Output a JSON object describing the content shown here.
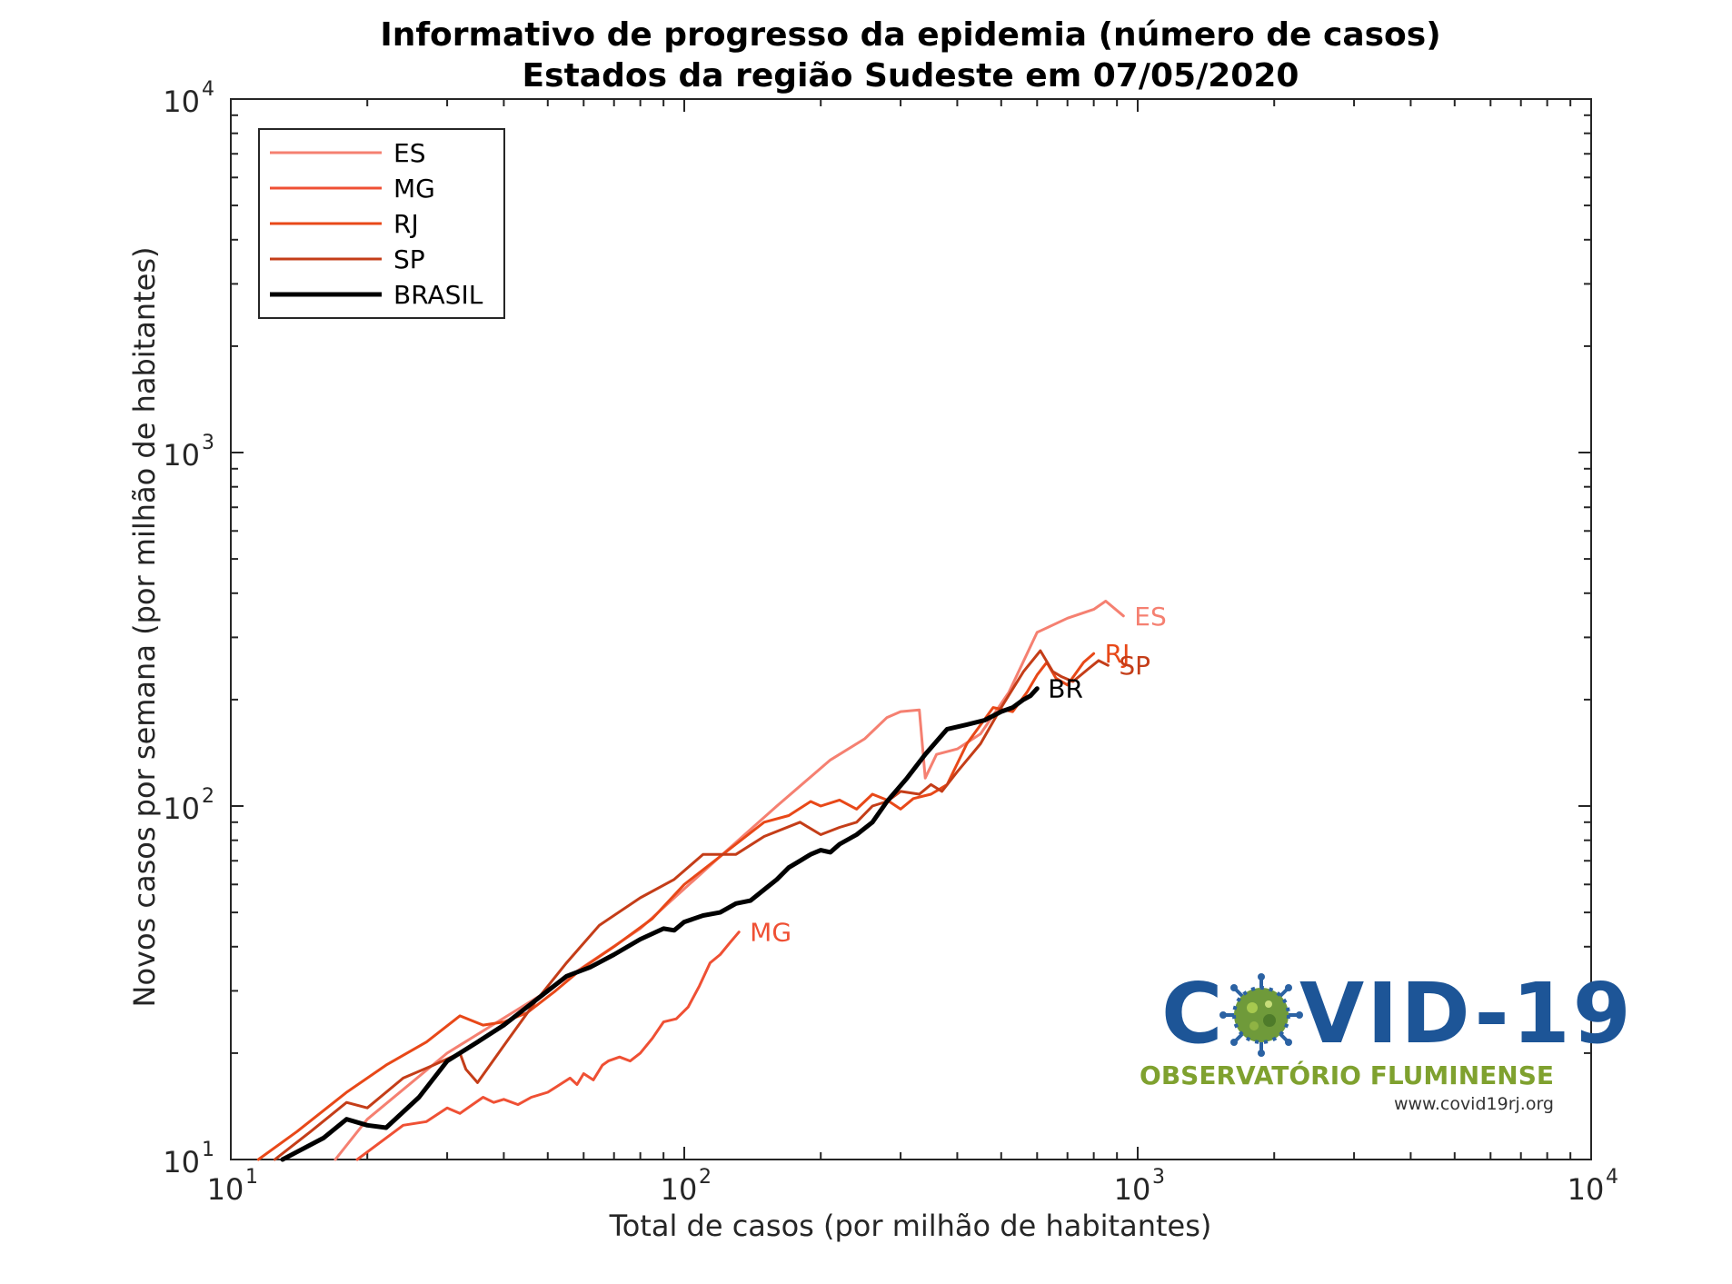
{
  "chart_data": {
    "type": "line",
    "title": "Informativo de progresso da epidemia (número de casos)",
    "subtitle": "Estados da região Sudeste  em 07/05/2020",
    "xlabel": "Total de casos (por milhão de habitantes)",
    "ylabel": "Novos casos por semana (por milhão de habitantes)",
    "x_scale": "log",
    "y_scale": "log",
    "xlim": [
      10,
      10000
    ],
    "ylim": [
      10,
      10000
    ],
    "x_ticks": [
      {
        "base": "10",
        "exp": "1"
      },
      {
        "base": "10",
        "exp": "2"
      },
      {
        "base": "10",
        "exp": "3"
      },
      {
        "base": "10",
        "exp": "4"
      }
    ],
    "y_ticks": [
      {
        "base": "10",
        "exp": "1"
      },
      {
        "base": "10",
        "exp": "2"
      },
      {
        "base": "10",
        "exp": "3"
      },
      {
        "base": "10",
        "exp": "4"
      }
    ],
    "grid": false,
    "legend_position": "top-left",
    "series": [
      {
        "name": "ES",
        "end_label": "ES",
        "color": "#f58071",
        "width": 3,
        "x": [
          17,
          20,
          30,
          50,
          80,
          120,
          160,
          210,
          250,
          280,
          300,
          330,
          340,
          360,
          400,
          450,
          520,
          600,
          700,
          800,
          850,
          930
        ],
        "y": [
          10,
          13,
          20,
          30,
          45,
          72,
          100,
          135,
          155,
          178,
          185,
          187,
          120,
          140,
          145,
          160,
          210,
          310,
          340,
          360,
          380,
          345
        ]
      },
      {
        "name": "MG",
        "end_label": "MG",
        "color": "#ef5034",
        "width": 3,
        "x": [
          19,
          24,
          27,
          30,
          32,
          36,
          38,
          40,
          43,
          46,
          50,
          52,
          56,
          58,
          60,
          63,
          66,
          68,
          72,
          76,
          80,
          85,
          90,
          96,
          102,
          108,
          114,
          120,
          126,
          132
        ],
        "y": [
          10,
          12.5,
          12.8,
          14,
          13.5,
          15,
          14.5,
          14.8,
          14.3,
          15,
          15.5,
          16,
          17,
          16.3,
          17.5,
          16.8,
          18.5,
          19,
          19.5,
          19,
          20,
          22,
          24.5,
          25,
          27,
          31,
          36,
          38,
          41,
          44
        ]
      },
      {
        "name": "RJ",
        "end_label": "RJ",
        "color": "#e84818",
        "width": 3,
        "x": [
          11.5,
          14,
          18,
          22,
          27,
          32,
          36,
          40,
          45,
          52,
          60,
          70,
          85,
          100,
          120,
          150,
          170,
          190,
          200,
          220,
          240,
          260,
          280,
          300,
          320,
          350,
          380,
          420,
          480,
          530,
          570,
          600,
          630,
          660,
          700,
          760,
          800
        ],
        "y": [
          10,
          12,
          15.5,
          18.5,
          21.5,
          25.5,
          24,
          24.5,
          26,
          30,
          35,
          40,
          48,
          60,
          72,
          90,
          94,
          103,
          100,
          104,
          98,
          108,
          104,
          98,
          105,
          108,
          115,
          150,
          190,
          185,
          210,
          235,
          255,
          230,
          220,
          255,
          270
        ]
      },
      {
        "name": "SP",
        "end_label": "SP",
        "color": "#c43d18",
        "width": 3,
        "x": [
          12.5,
          15,
          18,
          20,
          24,
          28,
          32,
          33,
          35,
          40,
          47,
          55,
          65,
          80,
          95,
          110,
          130,
          150,
          180,
          200,
          220,
          240,
          260,
          280,
          300,
          330,
          350,
          370,
          400,
          450,
          500,
          560,
          610,
          650,
          680,
          720,
          780,
          820,
          860
        ],
        "y": [
          10,
          12,
          14.5,
          14,
          17,
          18.5,
          20,
          18,
          16.5,
          21,
          28,
          36,
          46,
          55,
          62,
          73,
          73,
          82,
          90,
          83,
          87,
          90,
          100,
          103,
          110,
          108,
          115,
          110,
          125,
          150,
          190,
          240,
          275,
          240,
          232,
          225,
          245,
          258,
          250
        ]
      },
      {
        "name": "BRASIL",
        "end_label": "BR",
        "color": "#000000",
        "width": 5,
        "x": [
          13,
          16,
          18,
          20,
          22,
          26,
          30,
          35,
          40,
          45,
          50,
          55,
          62,
          70,
          80,
          90,
          95,
          100,
          110,
          120,
          130,
          140,
          150,
          160,
          170,
          180,
          190,
          200,
          210,
          220,
          240,
          260,
          280,
          310,
          340,
          380,
          420,
          460,
          500,
          530,
          560,
          580,
          600
        ],
        "y": [
          10,
          11.5,
          13,
          12.5,
          12.3,
          15,
          19,
          21.5,
          24,
          27,
          30,
          33,
          35,
          38,
          42,
          45,
          44.5,
          47,
          49,
          50,
          53,
          54,
          58,
          62,
          67,
          70,
          73,
          75,
          74,
          78,
          83,
          90,
          103,
          120,
          140,
          165,
          170,
          175,
          185,
          190,
          200,
          205,
          215
        ]
      }
    ]
  },
  "logo": {
    "title_left": "C",
    "title_right": "VID-19",
    "subtitle": "OBSERVATÓRIO FLUMINENSE",
    "url": "www.covid19rj.org"
  }
}
